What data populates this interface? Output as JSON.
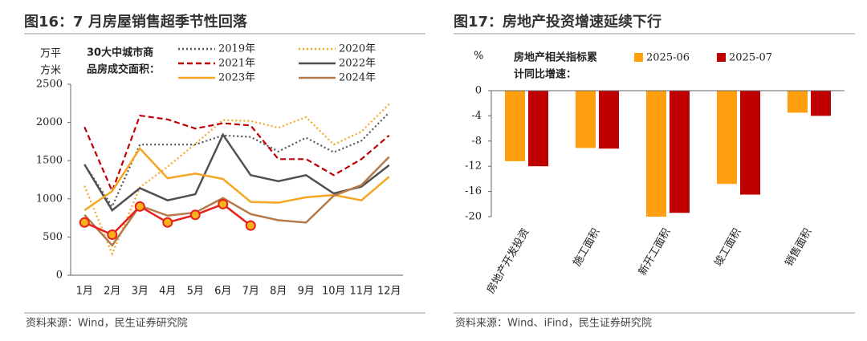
{
  "chart_data": [
    {
      "type": "line",
      "title": "图16：7 月房屋销售超季节性回落",
      "source": "资料来源：Wind，民生证券研究院",
      "y_label_lines": [
        "万平",
        "方米"
      ],
      "legend_title_lines": [
        "30大中城市商",
        "品房成交面积："
      ],
      "categories": [
        "1月",
        "2月",
        "3月",
        "4月",
        "5月",
        "6月",
        "7月",
        "8月",
        "9月",
        "10月",
        "11月",
        "12月"
      ],
      "ylim": [
        0,
        2500
      ],
      "yticks": [
        0,
        500,
        1000,
        1500,
        2000,
        2500
      ],
      "series": [
        {
          "name": "2019年",
          "color": "#555555",
          "line_style": "dotted",
          "values": [
            1450,
            900,
            1710,
            1710,
            1710,
            1830,
            1810,
            1620,
            1800,
            1610,
            1760,
            2130
          ]
        },
        {
          "name": "2020年",
          "color": "#f5a623",
          "line_style": "dotted",
          "values": [
            1170,
            280,
            1150,
            1420,
            1720,
            2030,
            2020,
            1930,
            2070,
            1710,
            1880,
            2240
          ]
        },
        {
          "name": "2021年",
          "color": "#c00000",
          "line_style": "dashed",
          "values": [
            1940,
            1100,
            2090,
            2040,
            1920,
            1990,
            1960,
            1520,
            1520,
            1310,
            1520,
            1830
          ]
        },
        {
          "name": "2022年",
          "color": "#505050",
          "line_style": "solid",
          "values": [
            1450,
            850,
            1140,
            980,
            1060,
            1840,
            1310,
            1230,
            1310,
            1070,
            1160,
            1440
          ]
        },
        {
          "name": "2023年",
          "color": "#f5a623",
          "line_style": "solid",
          "values": [
            850,
            1100,
            1660,
            1270,
            1330,
            1260,
            960,
            950,
            1020,
            1050,
            980,
            1290
          ]
        },
        {
          "name": "2024年",
          "color": "#b5794a",
          "line_style": "solid",
          "values": [
            790,
            390,
            910,
            780,
            820,
            1010,
            800,
            720,
            690,
            1040,
            1180,
            1550
          ]
        },
        {
          "color": "#e8201c",
          "line_style": "solid",
          "marker": "circle",
          "marker_fill": "#f5b21b",
          "values": [
            690,
            530,
            900,
            690,
            790,
            930,
            650,
            null,
            null,
            null,
            null,
            null
          ]
        }
      ]
    },
    {
      "type": "bar",
      "title": "图17：房地产投资增速延续下行",
      "source": "资料来源：Wind、iFind，民生证券研究院",
      "y_label": "%",
      "legend_title_lines": [
        "房地产相关指标累",
        "计同比增速："
      ],
      "categories": [
        "房地产开发投资",
        "施工面积",
        "新开工面积",
        "竣工面积",
        "销售面积"
      ],
      "ylim": [
        -20,
        0
      ],
      "yticks": [
        0,
        -4,
        -8,
        -12,
        -16,
        -20
      ],
      "series": [
        {
          "name": "2025-06",
          "color": "#ff9e0f",
          "values": [
            -11.2,
            -9.1,
            -20.0,
            -14.8,
            -3.5
          ]
        },
        {
          "name": "2025-07",
          "color": "#c00000",
          "values": [
            -12.0,
            -9.2,
            -19.4,
            -16.5,
            -4.0
          ]
        }
      ]
    }
  ]
}
